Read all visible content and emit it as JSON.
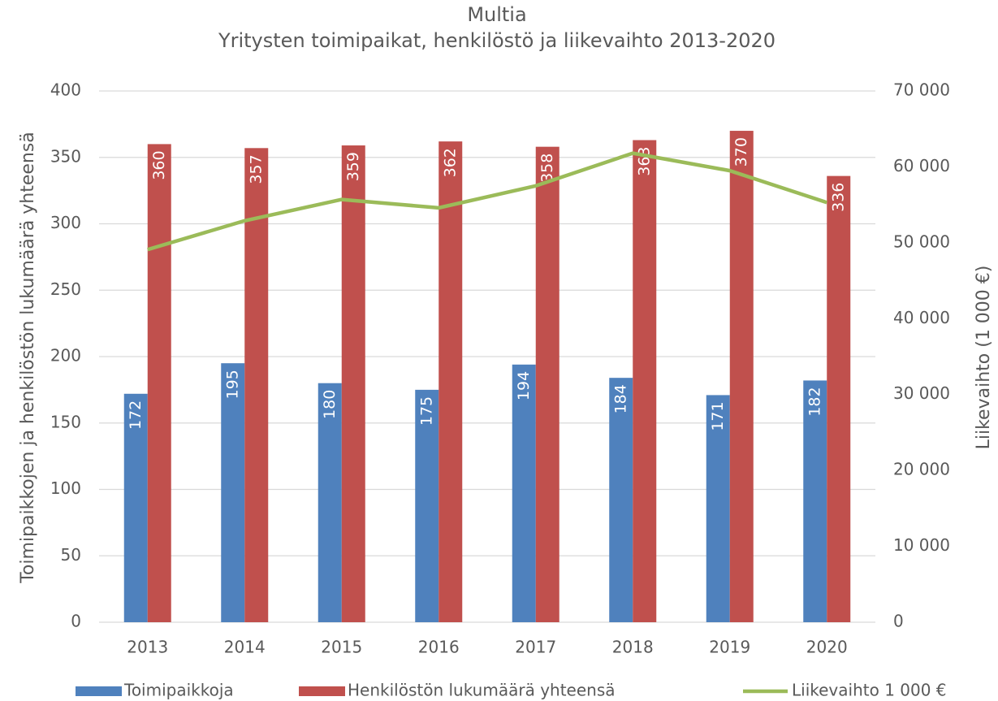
{
  "chart_data": {
    "type": "bar",
    "title": "Multia",
    "subtitle": "Yritysten toimipaikat, henkilöstö ja liikevaihto 2013-2020",
    "y_label": "Toimipaikkojen ja henkilöstön lukumäärä yhteensä",
    "y2_label": "Liikevaihto (1 000 €)",
    "categories": [
      "2013",
      "2014",
      "2015",
      "2016",
      "2017",
      "2018",
      "2019",
      "2020"
    ],
    "series": [
      {
        "name": "Toimipaikkoja",
        "color": "#4f81bd",
        "type": "bar",
        "values": [
          172,
          195,
          180,
          175,
          194,
          184,
          171,
          182
        ]
      },
      {
        "name": "Henkilöstön lukumäärä yhteensä",
        "color": "#c0504d",
        "type": "bar",
        "values": [
          360,
          357,
          359,
          362,
          358,
          363,
          370,
          336
        ]
      },
      {
        "name": "Liikevaihto 1 000 €",
        "color": "#9bbb59",
        "type": "line",
        "axis": "y2",
        "values": [
          49100,
          52900,
          55700,
          54600,
          57500,
          61800,
          59500,
          55300
        ]
      }
    ],
    "ylim": [
      0,
      400
    ],
    "yticks": [
      0,
      50,
      100,
      150,
      200,
      250,
      300,
      350,
      400
    ],
    "y2lim": [
      0,
      70000
    ],
    "y2ticks": [
      0,
      {
        "value": 10000,
        "label": "10 000"
      },
      {
        "value": 20000,
        "label": "20 000"
      },
      {
        "value": 30000,
        "label": "30 000"
      },
      {
        "value": 40000,
        "label": "40 000"
      },
      {
        "value": 50000,
        "label": "50 000"
      },
      {
        "value": 60000,
        "label": "60 000"
      },
      {
        "value": 70000,
        "label": "70 000"
      }
    ],
    "grid": true,
    "legend": "bottom"
  }
}
